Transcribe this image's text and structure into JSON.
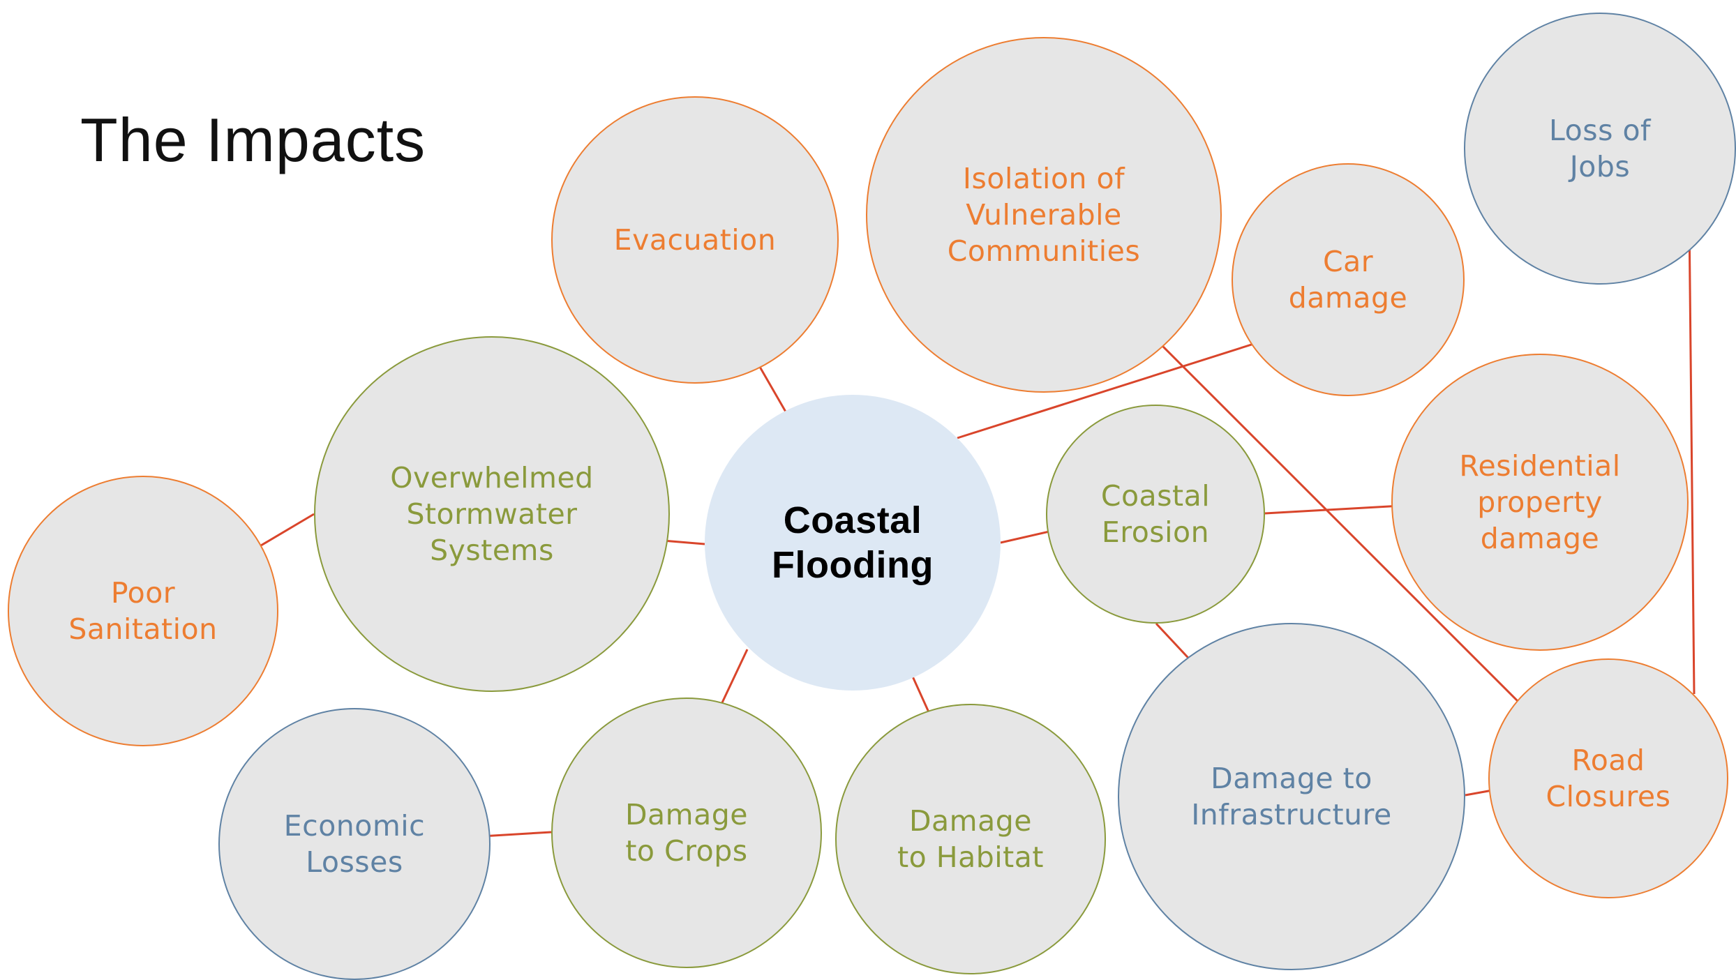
{
  "title": "The Impacts",
  "colors": {
    "orange": "#ed7d31",
    "olive": "#8a9a3c",
    "blue": "#5f82a4",
    "arrow": "#d9452b",
    "bubble_fill": "#e6e6e6",
    "center_fill": "#dde8f4"
  },
  "nodes": {
    "coastal_flooding": "Coastal\nFlooding",
    "evacuation": "Evacuation",
    "isolation": "Isolation of\nVulnerable\nCommunities",
    "car_damage": "Car\ndamage",
    "loss_of_jobs": "Loss of\nJobs",
    "overwhelmed": "Overwhelmed\nStormwater\nSystems",
    "poor_sanitation": "Poor\nSanitation",
    "coastal_erosion": "Coastal\nErosion",
    "residential": "Residential\nproperty\ndamage",
    "economic_losses": "Economic\nLosses",
    "damage_crops": "Damage\nto Crops",
    "damage_habitat": "Damage\nto Habitat",
    "damage_infrastructure": "Damage to\nInfrastructure",
    "road_closures": "Road\nClosures"
  },
  "links": [
    {
      "from": "Coastal Flooding",
      "to": "Evacuation"
    },
    {
      "from": "Coastal Flooding",
      "to": "Car damage"
    },
    {
      "from": "Coastal Flooding",
      "to": "Overwhelmed Stormwater Systems"
    },
    {
      "from": "Coastal Flooding",
      "to": "Coastal Erosion"
    },
    {
      "from": "Coastal Flooding",
      "to": "Damage to Crops"
    },
    {
      "from": "Coastal Flooding",
      "to": "Damage to Habitat"
    },
    {
      "from": "Overwhelmed Stormwater Systems",
      "to": "Poor Sanitation"
    },
    {
      "from": "Coastal Erosion",
      "to": "Residential property damage"
    },
    {
      "from": "Coastal Erosion",
      "to": "Damage to Infrastructure"
    },
    {
      "from": "Damage to Crops",
      "to": "Economic Losses"
    },
    {
      "from": "Damage to Infrastructure",
      "to": "Road Closures"
    },
    {
      "from": "Road Closures",
      "to": "Isolation of Vulnerable Communities"
    },
    {
      "from": "Road Closures",
      "to": "Loss of Jobs"
    }
  ]
}
